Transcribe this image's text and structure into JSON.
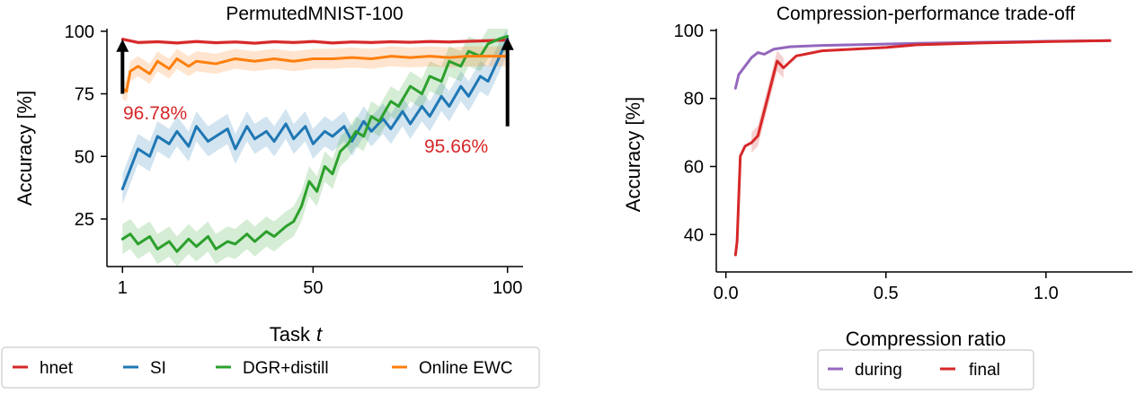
{
  "chart_data": [
    {
      "type": "line",
      "title": "PermutedMNIST-100",
      "xlabel": "Task",
      "xlabel_var": "t",
      "ylabel": "Accuracy [%]",
      "xlim": [
        -3,
        104
      ],
      "ylim": [
        6,
        101
      ],
      "xticks": [
        1,
        50,
        100
      ],
      "xtick_labels": [
        "1",
        "50",
        "100"
      ],
      "yticks": [
        25,
        50,
        75,
        100
      ],
      "ytick_labels": [
        "25",
        "50",
        "75",
        "100"
      ],
      "series": [
        {
          "name": "hnet",
          "color": "#d62728",
          "x": [
            1,
            5,
            10,
            15,
            20,
            25,
            30,
            35,
            40,
            45,
            50,
            55,
            60,
            65,
            70,
            75,
            80,
            85,
            90,
            95,
            100
          ],
          "y": [
            96.8,
            95.5,
            95.8,
            95.3,
            95.9,
            95.4,
            95.7,
            95.2,
            95.8,
            95.5,
            95.9,
            95.3,
            95.7,
            95.5,
            95.8,
            95.6,
            95.9,
            95.7,
            96.0,
            96.2,
            96.5
          ],
          "band": 0.8
        },
        {
          "name": "SI",
          "color": "#1f77b4",
          "x": [
            1,
            3,
            5,
            8,
            10,
            13,
            15,
            18,
            20,
            23,
            25,
            28,
            30,
            33,
            35,
            38,
            40,
            43,
            45,
            48,
            50,
            53,
            55,
            58,
            60,
            63,
            65,
            68,
            70,
            73,
            75,
            78,
            80,
            83,
            85,
            88,
            90,
            93,
            95,
            98,
            100
          ],
          "y": [
            37,
            45,
            53,
            50,
            58,
            55,
            60,
            54,
            62,
            56,
            58,
            61,
            53,
            62,
            57,
            60,
            56,
            63,
            57,
            62,
            55,
            60,
            58,
            62,
            56,
            64,
            60,
            65,
            61,
            68,
            63,
            70,
            66,
            74,
            70,
            78,
            74,
            82,
            80,
            90,
            97
          ],
          "band": 6
        },
        {
          "name": "DGR+distill",
          "color": "#2ca02c",
          "x": [
            1,
            3,
            5,
            8,
            10,
            13,
            15,
            18,
            20,
            23,
            25,
            28,
            30,
            33,
            35,
            38,
            40,
            43,
            45,
            47,
            49,
            51,
            53,
            55,
            57,
            59,
            61,
            63,
            65,
            67,
            70,
            72,
            75,
            78,
            80,
            83,
            85,
            88,
            90,
            93,
            95,
            98,
            100
          ],
          "y": [
            17,
            19,
            15,
            18,
            13,
            16,
            12,
            17,
            14,
            18,
            13,
            16,
            15,
            19,
            16,
            20,
            18,
            22,
            24,
            30,
            40,
            36,
            46,
            43,
            52,
            55,
            60,
            58,
            66,
            64,
            72,
            70,
            78,
            75,
            82,
            80,
            88,
            86,
            92,
            90,
            95,
            97,
            98
          ],
          "band": 6
        },
        {
          "name": "Online EWC",
          "color": "#ff7f0e",
          "x": [
            1,
            2,
            3,
            5,
            8,
            10,
            13,
            15,
            18,
            20,
            25,
            30,
            35,
            40,
            45,
            50,
            55,
            60,
            65,
            70,
            75,
            80,
            85,
            90,
            95,
            100
          ],
          "y": [
            77,
            76,
            84,
            86,
            83,
            88,
            85,
            89,
            86,
            88,
            87,
            89,
            88,
            89,
            88,
            89,
            89,
            89.5,
            89,
            90,
            89.5,
            90,
            89.5,
            90,
            90,
            90
          ],
          "band": 4
        }
      ],
      "annotations": [
        {
          "text": "96.78%",
          "color": "#d62728"
        },
        {
          "text": "95.66%",
          "color": "#d62728"
        }
      ],
      "legend_position": "bottom"
    },
    {
      "type": "line",
      "title": "Compression-performance trade-off",
      "xlabel": "Compression ratio",
      "ylabel": "Accuracy [%]",
      "xlim": [
        -0.03,
        1.27
      ],
      "ylim": [
        29,
        100.5
      ],
      "xticks": [
        0.0,
        0.5,
        1.0
      ],
      "xtick_labels": [
        "0.0",
        "0.5",
        "1.0"
      ],
      "yticks": [
        40,
        60,
        80,
        100
      ],
      "ytick_labels": [
        "40",
        "60",
        "80",
        "100"
      ],
      "series": [
        {
          "name": "during",
          "color": "#9467bd",
          "x": [
            0.03,
            0.04,
            0.06,
            0.08,
            0.1,
            0.12,
            0.15,
            0.2,
            0.3,
            0.4,
            0.6,
            0.8,
            1.0,
            1.2
          ],
          "y": [
            83,
            87,
            89.5,
            92,
            93.5,
            93,
            94.5,
            95.2,
            95.6,
            95.8,
            96.2,
            96.5,
            96.8,
            97
          ]
        },
        {
          "name": "final",
          "color": "#d62728",
          "x": [
            0.03,
            0.035,
            0.045,
            0.06,
            0.08,
            0.1,
            0.13,
            0.16,
            0.18,
            0.22,
            0.3,
            0.4,
            0.5,
            0.6,
            0.8,
            1.0,
            1.2
          ],
          "y": [
            34,
            38,
            63,
            66,
            67,
            69,
            80,
            91,
            89,
            92.5,
            94,
            94.5,
            95,
            95.8,
            96.3,
            96.7,
            97
          ],
          "band_ranges": [
            [
              0.1,
              0.18,
              3
            ]
          ]
        }
      ],
      "legend_position": "bottom"
    }
  ]
}
